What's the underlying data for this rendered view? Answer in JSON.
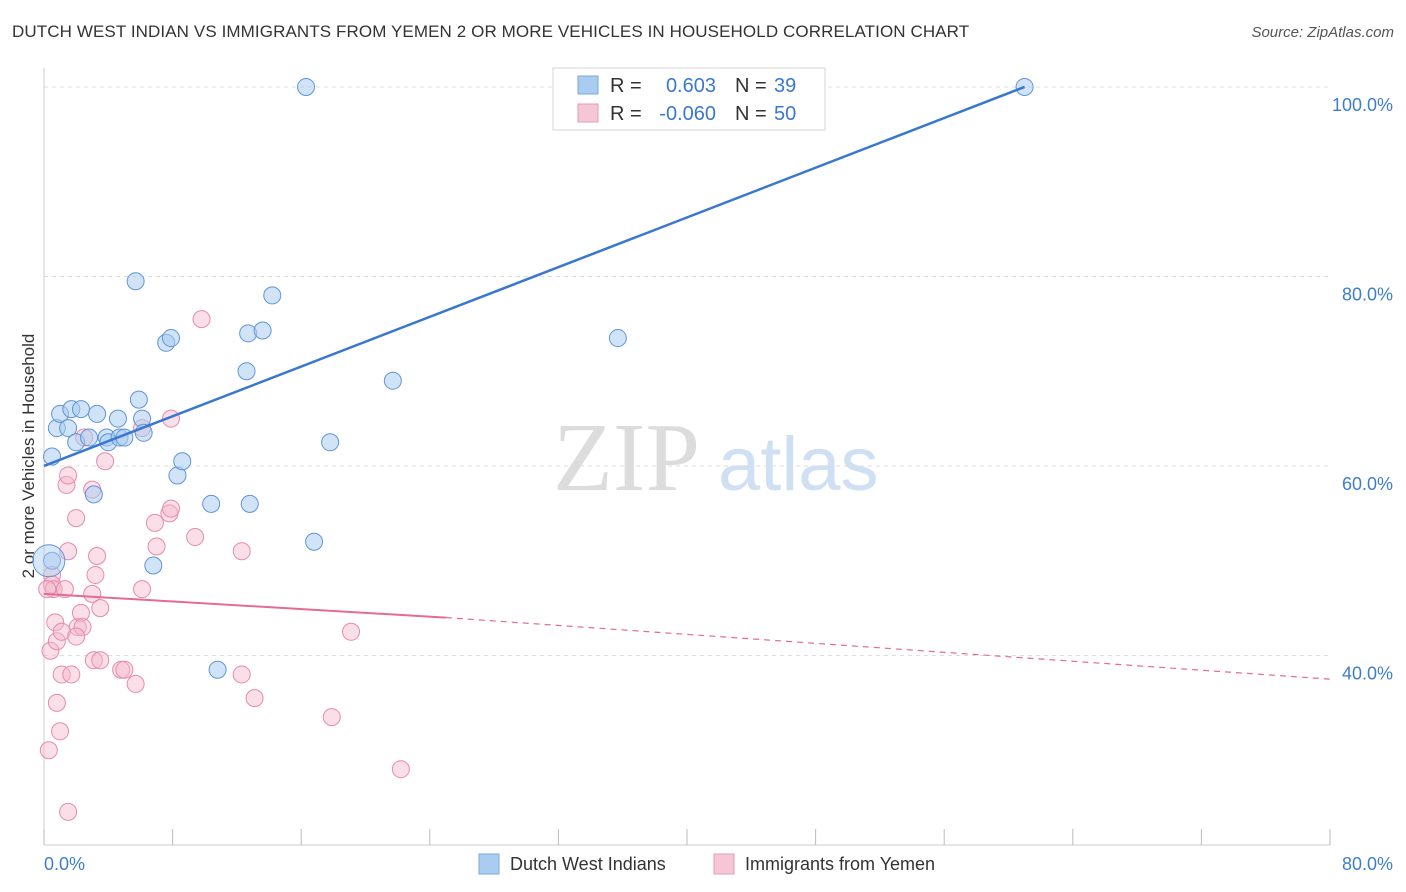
{
  "title": "DUTCH WEST INDIAN VS IMMIGRANTS FROM YEMEN 2 OR MORE VEHICLES IN HOUSEHOLD CORRELATION CHART",
  "source": "Source: ZipAtlas.com",
  "watermark": {
    "zip": "ZIP",
    "atlas": "atlas"
  },
  "colors": {
    "blue": "#3a78d0",
    "blue_fill": "#aaccf0",
    "pink": "#e56a95",
    "pink_fill": "#f5b8cc",
    "axis_text": "#3f7ecb",
    "grid": "#dddddd"
  },
  "stats": [
    {
      "r_label": "R =",
      "r_value": "0.603",
      "n_label": "N =",
      "n_value": "39"
    },
    {
      "r_label": "R =",
      "r_value": "-0.060",
      "n_label": "N =",
      "n_value": "50"
    }
  ],
  "chart_data": {
    "type": "scatter",
    "title": "DUTCH WEST INDIAN VS IMMIGRANTS FROM YEMEN 2 OR MORE VEHICLES IN HOUSEHOLD CORRELATION CHART",
    "xlabel": "",
    "ylabel": "2 or more Vehicles in Household",
    "xlim": [
      0,
      80
    ],
    "ylim": [
      20,
      102
    ],
    "x_tick_labels": [
      "0.0%",
      "80.0%"
    ],
    "y_ticks": [
      40,
      60,
      80,
      100
    ],
    "y_tick_labels": [
      "40.0%",
      "60.0%",
      "80.0%",
      "100.0%"
    ],
    "legend_position": "bottom-center",
    "series": [
      {
        "name": "Dutch West Indians",
        "color": "#3a78d0",
        "trend": {
          "x0": 0.0,
          "y0": 60.0,
          "x1": 61.0,
          "y1": 100.0,
          "dashed_to": null
        },
        "points": [
          [
            0.5,
            50.0
          ],
          [
            0.5,
            61.0
          ],
          [
            0.8,
            64.0
          ],
          [
            1.0,
            65.5
          ],
          [
            1.5,
            64.0
          ],
          [
            1.7,
            66.0
          ],
          [
            2.0,
            62.5
          ],
          [
            2.3,
            66.0
          ],
          [
            2.8,
            63.0
          ],
          [
            3.1,
            57.0
          ],
          [
            3.3,
            65.5
          ],
          [
            3.9,
            63.0
          ],
          [
            4.0,
            62.5
          ],
          [
            4.7,
            63.0
          ],
          [
            4.6,
            65.0
          ],
          [
            5.0,
            63.0
          ],
          [
            5.7,
            79.5
          ],
          [
            5.9,
            67.0
          ],
          [
            6.1,
            65.0
          ],
          [
            6.2,
            63.5
          ],
          [
            6.8,
            49.5
          ],
          [
            7.6,
            73.0
          ],
          [
            7.9,
            73.5
          ],
          [
            8.3,
            59.0
          ],
          [
            8.6,
            60.5
          ],
          [
            10.4,
            56.0
          ],
          [
            10.8,
            38.5
          ],
          [
            12.6,
            70.0
          ],
          [
            12.7,
            74.0
          ],
          [
            12.8,
            56.0
          ],
          [
            13.6,
            74.3
          ],
          [
            14.2,
            78.0
          ],
          [
            16.3,
            100.0
          ],
          [
            16.8,
            52.0
          ],
          [
            17.8,
            62.5
          ],
          [
            21.7,
            69.0
          ],
          [
            34.8,
            100.0
          ],
          [
            35.7,
            73.5
          ],
          [
            61.0,
            100.0
          ]
        ]
      },
      {
        "name": "Immigrants from Yemen",
        "color": "#e56a95",
        "trend": {
          "x0": 0.0,
          "y0": 46.5,
          "x1": 25.0,
          "y1": 44.0,
          "dashed_to": [
            80.0,
            37.5
          ]
        },
        "points": [
          [
            0.3,
            30.0
          ],
          [
            0.4,
            40.5
          ],
          [
            0.5,
            48.5
          ],
          [
            0.5,
            47.5
          ],
          [
            0.6,
            47.0
          ],
          [
            0.7,
            43.5
          ],
          [
            0.8,
            35.0
          ],
          [
            0.8,
            41.5
          ],
          [
            1.0,
            32.0
          ],
          [
            1.1,
            38.0
          ],
          [
            1.1,
            42.5
          ],
          [
            1.3,
            47.0
          ],
          [
            1.4,
            58.0
          ],
          [
            1.5,
            51.0
          ],
          [
            1.5,
            59.0
          ],
          [
            1.5,
            23.5
          ],
          [
            1.7,
            38.0
          ],
          [
            2.0,
            54.5
          ],
          [
            2.1,
            43.0
          ],
          [
            2.3,
            44.5
          ],
          [
            2.4,
            43.0
          ],
          [
            2.5,
            63.0
          ],
          [
            3.0,
            57.5
          ],
          [
            3.0,
            46.5
          ],
          [
            3.1,
            39.5
          ],
          [
            3.2,
            48.5
          ],
          [
            3.3,
            50.5
          ],
          [
            3.5,
            39.5
          ],
          [
            3.5,
            45.0
          ],
          [
            3.8,
            60.5
          ],
          [
            4.8,
            38.5
          ],
          [
            5.0,
            38.5
          ],
          [
            5.7,
            37.0
          ],
          [
            6.1,
            47.0
          ],
          [
            6.1,
            64.0
          ],
          [
            6.9,
            54.0
          ],
          [
            7.0,
            51.5
          ],
          [
            7.8,
            55.0
          ],
          [
            7.9,
            55.5
          ],
          [
            7.9,
            65.0
          ],
          [
            9.4,
            52.5
          ],
          [
            9.8,
            75.5
          ],
          [
            12.3,
            51.0
          ],
          [
            12.3,
            38.0
          ],
          [
            13.1,
            35.5
          ],
          [
            17.9,
            33.5
          ],
          [
            19.1,
            42.5
          ],
          [
            22.2,
            28.0
          ],
          [
            0.2,
            47.0
          ],
          [
            2.0,
            42.0
          ]
        ]
      }
    ]
  },
  "legend": {
    "items": [
      "Dutch West Indians",
      "Immigrants from Yemen"
    ]
  }
}
